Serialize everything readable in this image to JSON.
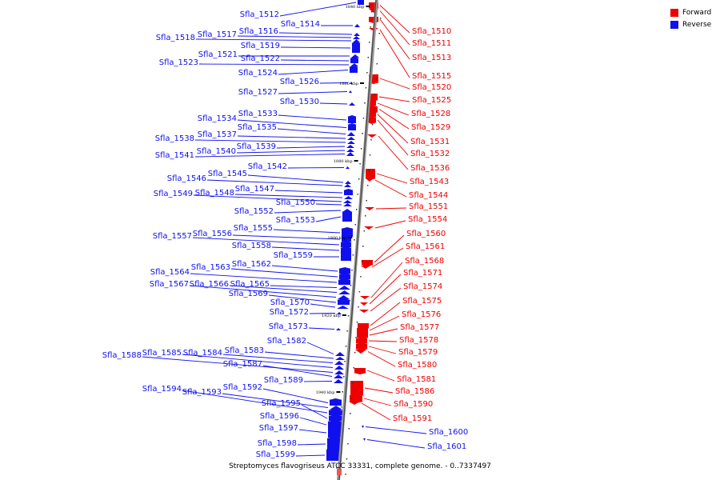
{
  "legend": {
    "forward": {
      "label": "Forward",
      "color": "#ee0000"
    },
    "reverse": {
      "label": "Reverse",
      "color": "#1010ee"
    }
  },
  "caption": "Streptomyces flavogriseus ATCC 33331, complete genome. - 0..7337497",
  "axis_ticks": [
    "1840 kbp",
    "1860 kbp",
    "1880 kbp",
    "1900 kbp",
    "1920 kbp",
    "1940 kbp"
  ],
  "reverse_genes": [
    "Sfla_1512",
    "Sfla_1514",
    "Sfla_1516",
    "Sfla_1517",
    "Sfla_1518",
    "Sfla_1519",
    "Sfla_1521",
    "Sfla_1522",
    "Sfla_1523",
    "Sfla_1524",
    "Sfla_1526",
    "Sfla_1527",
    "Sfla_1530",
    "Sfla_1533",
    "Sfla_1534",
    "Sfla_1535",
    "Sfla_1537",
    "Sfla_1538",
    "Sfla_1539",
    "Sfla_1540",
    "Sfla_1541",
    "Sfla_1542",
    "Sfla_1545",
    "Sfla_1546",
    "Sfla_1547",
    "Sfla_1548",
    "Sfla_1549",
    "Sfla_1550",
    "Sfla_1552",
    "Sfla_1553",
    "Sfla_1555",
    "Sfla_1556",
    "Sfla_1557",
    "Sfla_1558",
    "Sfla_1559",
    "Sfla_1562",
    "Sfla_1563",
    "Sfla_1564",
    "Sfla_1565",
    "Sfla_1566",
    "Sfla_1567",
    "Sfla_1569",
    "Sfla_1570",
    "Sfla_1572",
    "Sfla_1573",
    "Sfla_1582",
    "Sfla_1583",
    "Sfla_1584",
    "Sfla_1585",
    "Sfla_1588",
    "Sfla_1587",
    "Sfla_1589",
    "Sfla_1592",
    "Sfla_1593",
    "Sfla_1594",
    "Sfla_1595",
    "Sfla_1596",
    "Sfla_1597",
    "Sfla_1598",
    "Sfla_1599",
    "Sfla_1600",
    "Sfla_1601"
  ],
  "forward_genes": [
    "Sfla_1510",
    "Sfla_1511",
    "Sfla_1513",
    "Sfla_1515",
    "Sfla_1520",
    "Sfla_1525",
    "Sfla_1528",
    "Sfla_1529",
    "Sfla_1531",
    "Sfla_1532",
    "Sfla_1536",
    "Sfla_1543",
    "Sfla_1544",
    "Sfla_1551",
    "Sfla_1554",
    "Sfla_1560",
    "Sfla_1561",
    "Sfla_1568",
    "Sfla_1571",
    "Sfla_1574",
    "Sfla_1575",
    "Sfla_1576",
    "Sfla_1577",
    "Sfla_1578",
    "Sfla_1579",
    "Sfla_1580",
    "Sfla_1581",
    "Sfla_1586",
    "Sfla_1590",
    "Sfla_1591"
  ]
}
